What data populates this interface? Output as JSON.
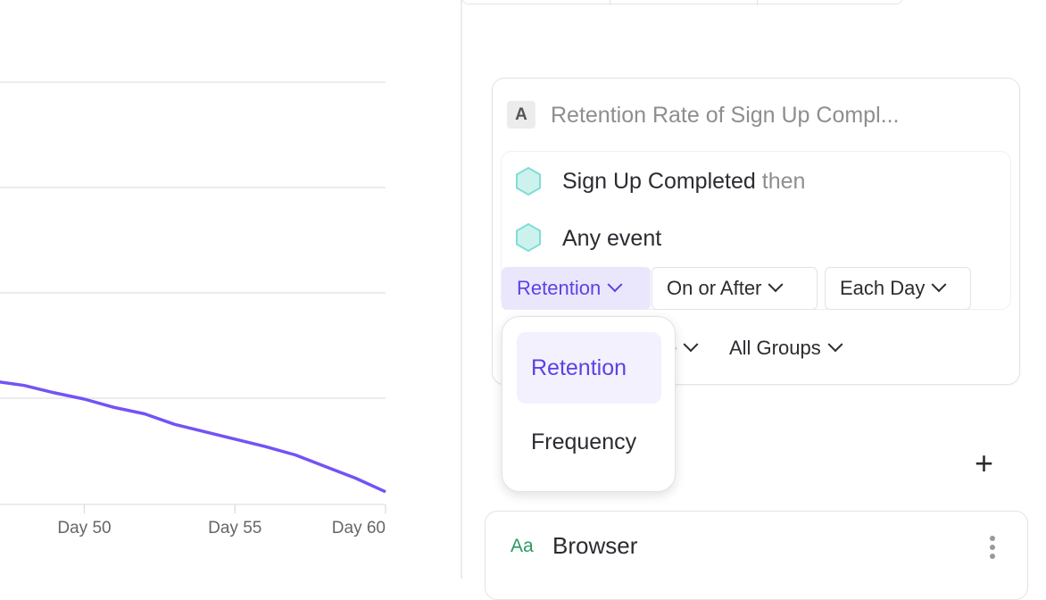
{
  "chart_data": {
    "type": "line",
    "x_tick_labels": [
      "Day 50",
      "Day 55",
      "Day 60"
    ],
    "x_tick_days": [
      50,
      55,
      60
    ],
    "xlim": [
      47.2,
      60
    ],
    "grid": true,
    "line_color": "#7353f5",
    "series": [
      {
        "x": [
          47,
          48,
          49,
          50,
          51,
          52,
          53,
          54,
          55,
          56,
          57,
          58,
          59,
          60
        ],
        "values": [
          1.17,
          1.13,
          1.06,
          1.0,
          0.92,
          0.86,
          0.76,
          0.69,
          0.62,
          0.55,
          0.47,
          0.36,
          0.25,
          0.12
        ]
      }
    ]
  },
  "metric": {
    "badge": "A",
    "title": "Retention Rate of Sign Up Compl...",
    "events": [
      {
        "name": "Sign Up Completed",
        "suffix": "then",
        "icon": "hexagon-icon"
      },
      {
        "name": "Any event",
        "icon": "hexagon-icon"
      }
    ],
    "controls": {
      "type": "Retention",
      "condition": "On or After",
      "interval": "Each Day"
    },
    "row2": {
      "partial": "te",
      "groups": "All Groups"
    }
  },
  "dropdown": {
    "options": [
      "Retention",
      "Frequency"
    ],
    "selected": "Retention"
  },
  "breakdown": {
    "add_label": "+",
    "items": [
      {
        "type_icon": "Aa",
        "name": "Browser"
      }
    ]
  },
  "colors": {
    "accent": "#5a43e3",
    "accent_bg": "#eae7fd",
    "event_icon": "#7fded4",
    "string_icon": "#2a9a64"
  }
}
